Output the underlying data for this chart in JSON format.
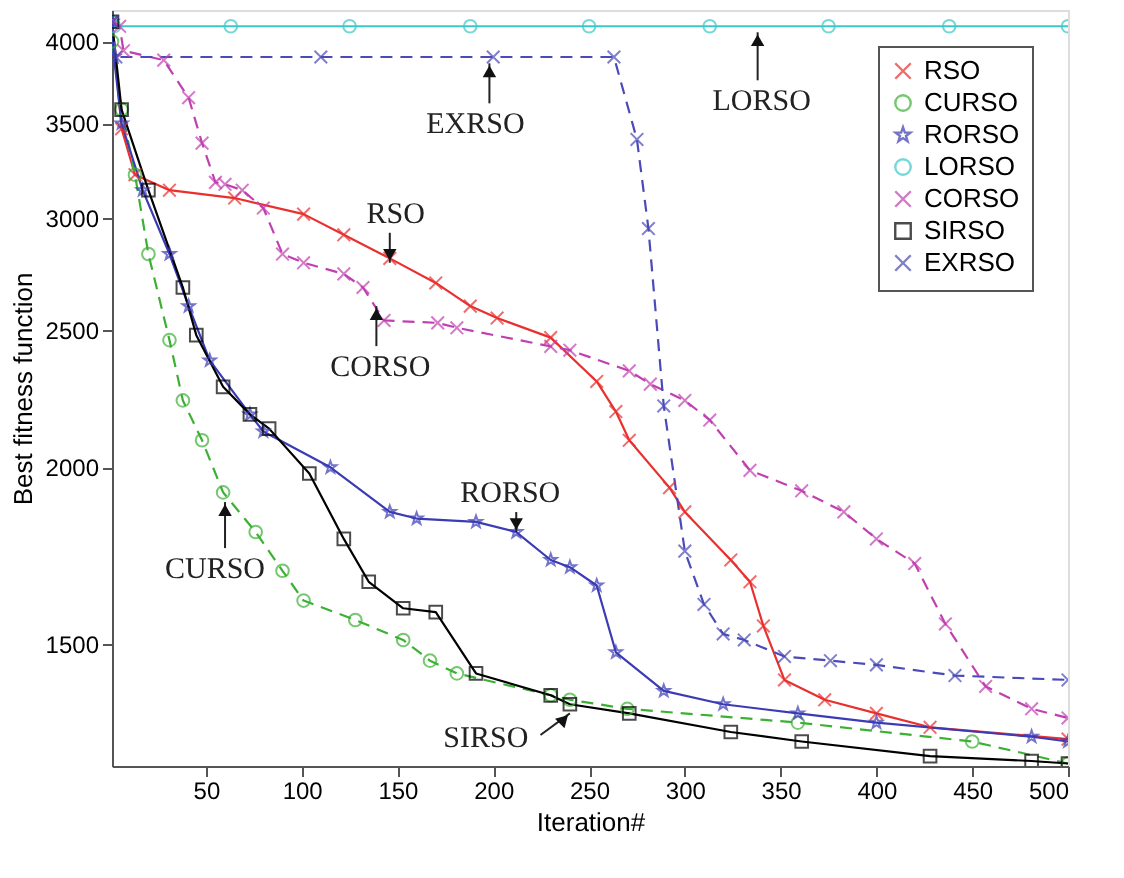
{
  "chart_data": {
    "type": "line",
    "xlabel": "Iteration#",
    "ylabel": "Best fitness function",
    "log": "y",
    "xlim": [
      1,
      500
    ],
    "xticks": [
      50,
      100,
      150,
      200,
      250,
      300,
      350,
      400,
      450,
      500
    ],
    "ylim": [
      1230,
      4210
    ],
    "yticks": [
      1500,
      2000,
      2500,
      3000,
      3500,
      4000
    ],
    "grid": false,
    "legend": "top right",
    "series": [
      {
        "name": "RSO",
        "color": "#e8302f",
        "line_style": "solid",
        "marker": "cross",
        "x": [
          1,
          6,
          13,
          31,
          65,
          101,
          122,
          146,
          170,
          188,
          202,
          230,
          254,
          264,
          271,
          292,
          300,
          324,
          334,
          341,
          352,
          373,
          400,
          428,
          500
        ],
        "values": [
          4130,
          3470,
          3220,
          3140,
          3100,
          3020,
          2920,
          2810,
          2700,
          2600,
          2550,
          2470,
          2300,
          2190,
          2090,
          1935,
          1860,
          1720,
          1660,
          1545,
          1415,
          1370,
          1340,
          1310,
          1285
        ]
      },
      {
        "name": "CURSO",
        "color": "#3cb034",
        "line_style": "dashed",
        "marker": "circle",
        "x": [
          1,
          6,
          13,
          20,
          31,
          38,
          48,
          59,
          76,
          90,
          101,
          128,
          153,
          167,
          181,
          230,
          240,
          270,
          359,
          450,
          500
        ],
        "values": [
          4000,
          3580,
          3220,
          2830,
          2460,
          2230,
          2090,
          1920,
          1800,
          1690,
          1610,
          1560,
          1510,
          1460,
          1430,
          1380,
          1370,
          1350,
          1320,
          1280,
          1235
        ]
      },
      {
        "name": "RORSO",
        "color": "#3a3bb5",
        "line_style": "solid",
        "marker": "star",
        "x": [
          1,
          2,
          6,
          17,
          31,
          41,
          52,
          73,
          80,
          115,
          146,
          160,
          191,
          212,
          230,
          240,
          254,
          264,
          289,
          320,
          359,
          400,
          481,
          500
        ],
        "values": [
          4130,
          3900,
          3500,
          3140,
          2830,
          2600,
          2380,
          2180,
          2120,
          2000,
          1860,
          1840,
          1830,
          1800,
          1720,
          1700,
          1650,
          1480,
          1390,
          1360,
          1340,
          1320,
          1290,
          1280
        ]
      },
      {
        "name": "LORSO",
        "color": "#3cc8c8",
        "line_style": "solid",
        "marker": "circle",
        "x": [
          1,
          2,
          63,
          125,
          188,
          250,
          313,
          375,
          438,
          500
        ],
        "values": [
          4130,
          4100,
          4100,
          4100,
          4100,
          4100,
          4100,
          4100,
          4100,
          4100
        ]
      },
      {
        "name": "CORSO",
        "color": "#c040b0",
        "line_style": "dashed",
        "marker": "cross",
        "x": [
          1,
          5,
          7,
          28,
          41,
          48,
          55,
          60,
          69,
          80,
          90,
          101,
          122,
          132,
          143,
          171,
          181,
          230,
          240,
          271,
          282,
          300,
          313,
          334,
          361,
          383,
          400,
          420,
          436,
          457,
          481,
          500
        ],
        "values": [
          4130,
          4100,
          3940,
          3880,
          3650,
          3390,
          3180,
          3170,
          3140,
          3050,
          2830,
          2790,
          2740,
          2680,
          2540,
          2530,
          2510,
          2435,
          2420,
          2340,
          2290,
          2230,
          2160,
          1990,
          1925,
          1860,
          1780,
          1710,
          1550,
          1400,
          1350,
          1330
        ]
      },
      {
        "name": "SIRSO",
        "color": "#000000",
        "line_style": "solid",
        "marker": "square",
        "x": [
          1,
          6,
          20,
          38,
          45,
          59,
          73,
          83,
          104,
          122,
          135,
          153,
          170,
          191,
          230,
          240,
          271,
          324,
          361,
          428,
          481,
          500
        ],
        "values": [
          4130,
          3580,
          3140,
          2680,
          2480,
          2280,
          2180,
          2130,
          1980,
          1780,
          1660,
          1590,
          1580,
          1430,
          1380,
          1360,
          1340,
          1300,
          1280,
          1250,
          1240,
          1235
        ]
      },
      {
        "name": "EXRSO",
        "color": "#4a4ab8",
        "line_style": "dashed",
        "marker": "cross",
        "x": [
          1,
          3,
          110,
          200,
          263,
          275,
          281,
          289,
          300,
          310,
          320,
          331,
          352,
          376,
          400,
          441,
          500
        ],
        "values": [
          4130,
          3900,
          3900,
          3900,
          3900,
          3410,
          2950,
          2210,
          1745,
          1600,
          1525,
          1510,
          1470,
          1460,
          1450,
          1425,
          1415
        ]
      }
    ],
    "annotations": [
      {
        "text": "EXRSO",
        "x": 198,
        "y": 3860
      },
      {
        "text": "LORSO",
        "x": 338,
        "y": 4060
      },
      {
        "text": "RSO",
        "x": 146,
        "y": 2790
      },
      {
        "text": "CORSO",
        "x": 139,
        "y": 2600
      },
      {
        "text": "CURSO",
        "x": 60,
        "y": 1890
      },
      {
        "text": "RORSO",
        "x": 212,
        "y": 1800
      },
      {
        "text": "SIRSO",
        "x": 240,
        "y": 1340
      }
    ]
  }
}
